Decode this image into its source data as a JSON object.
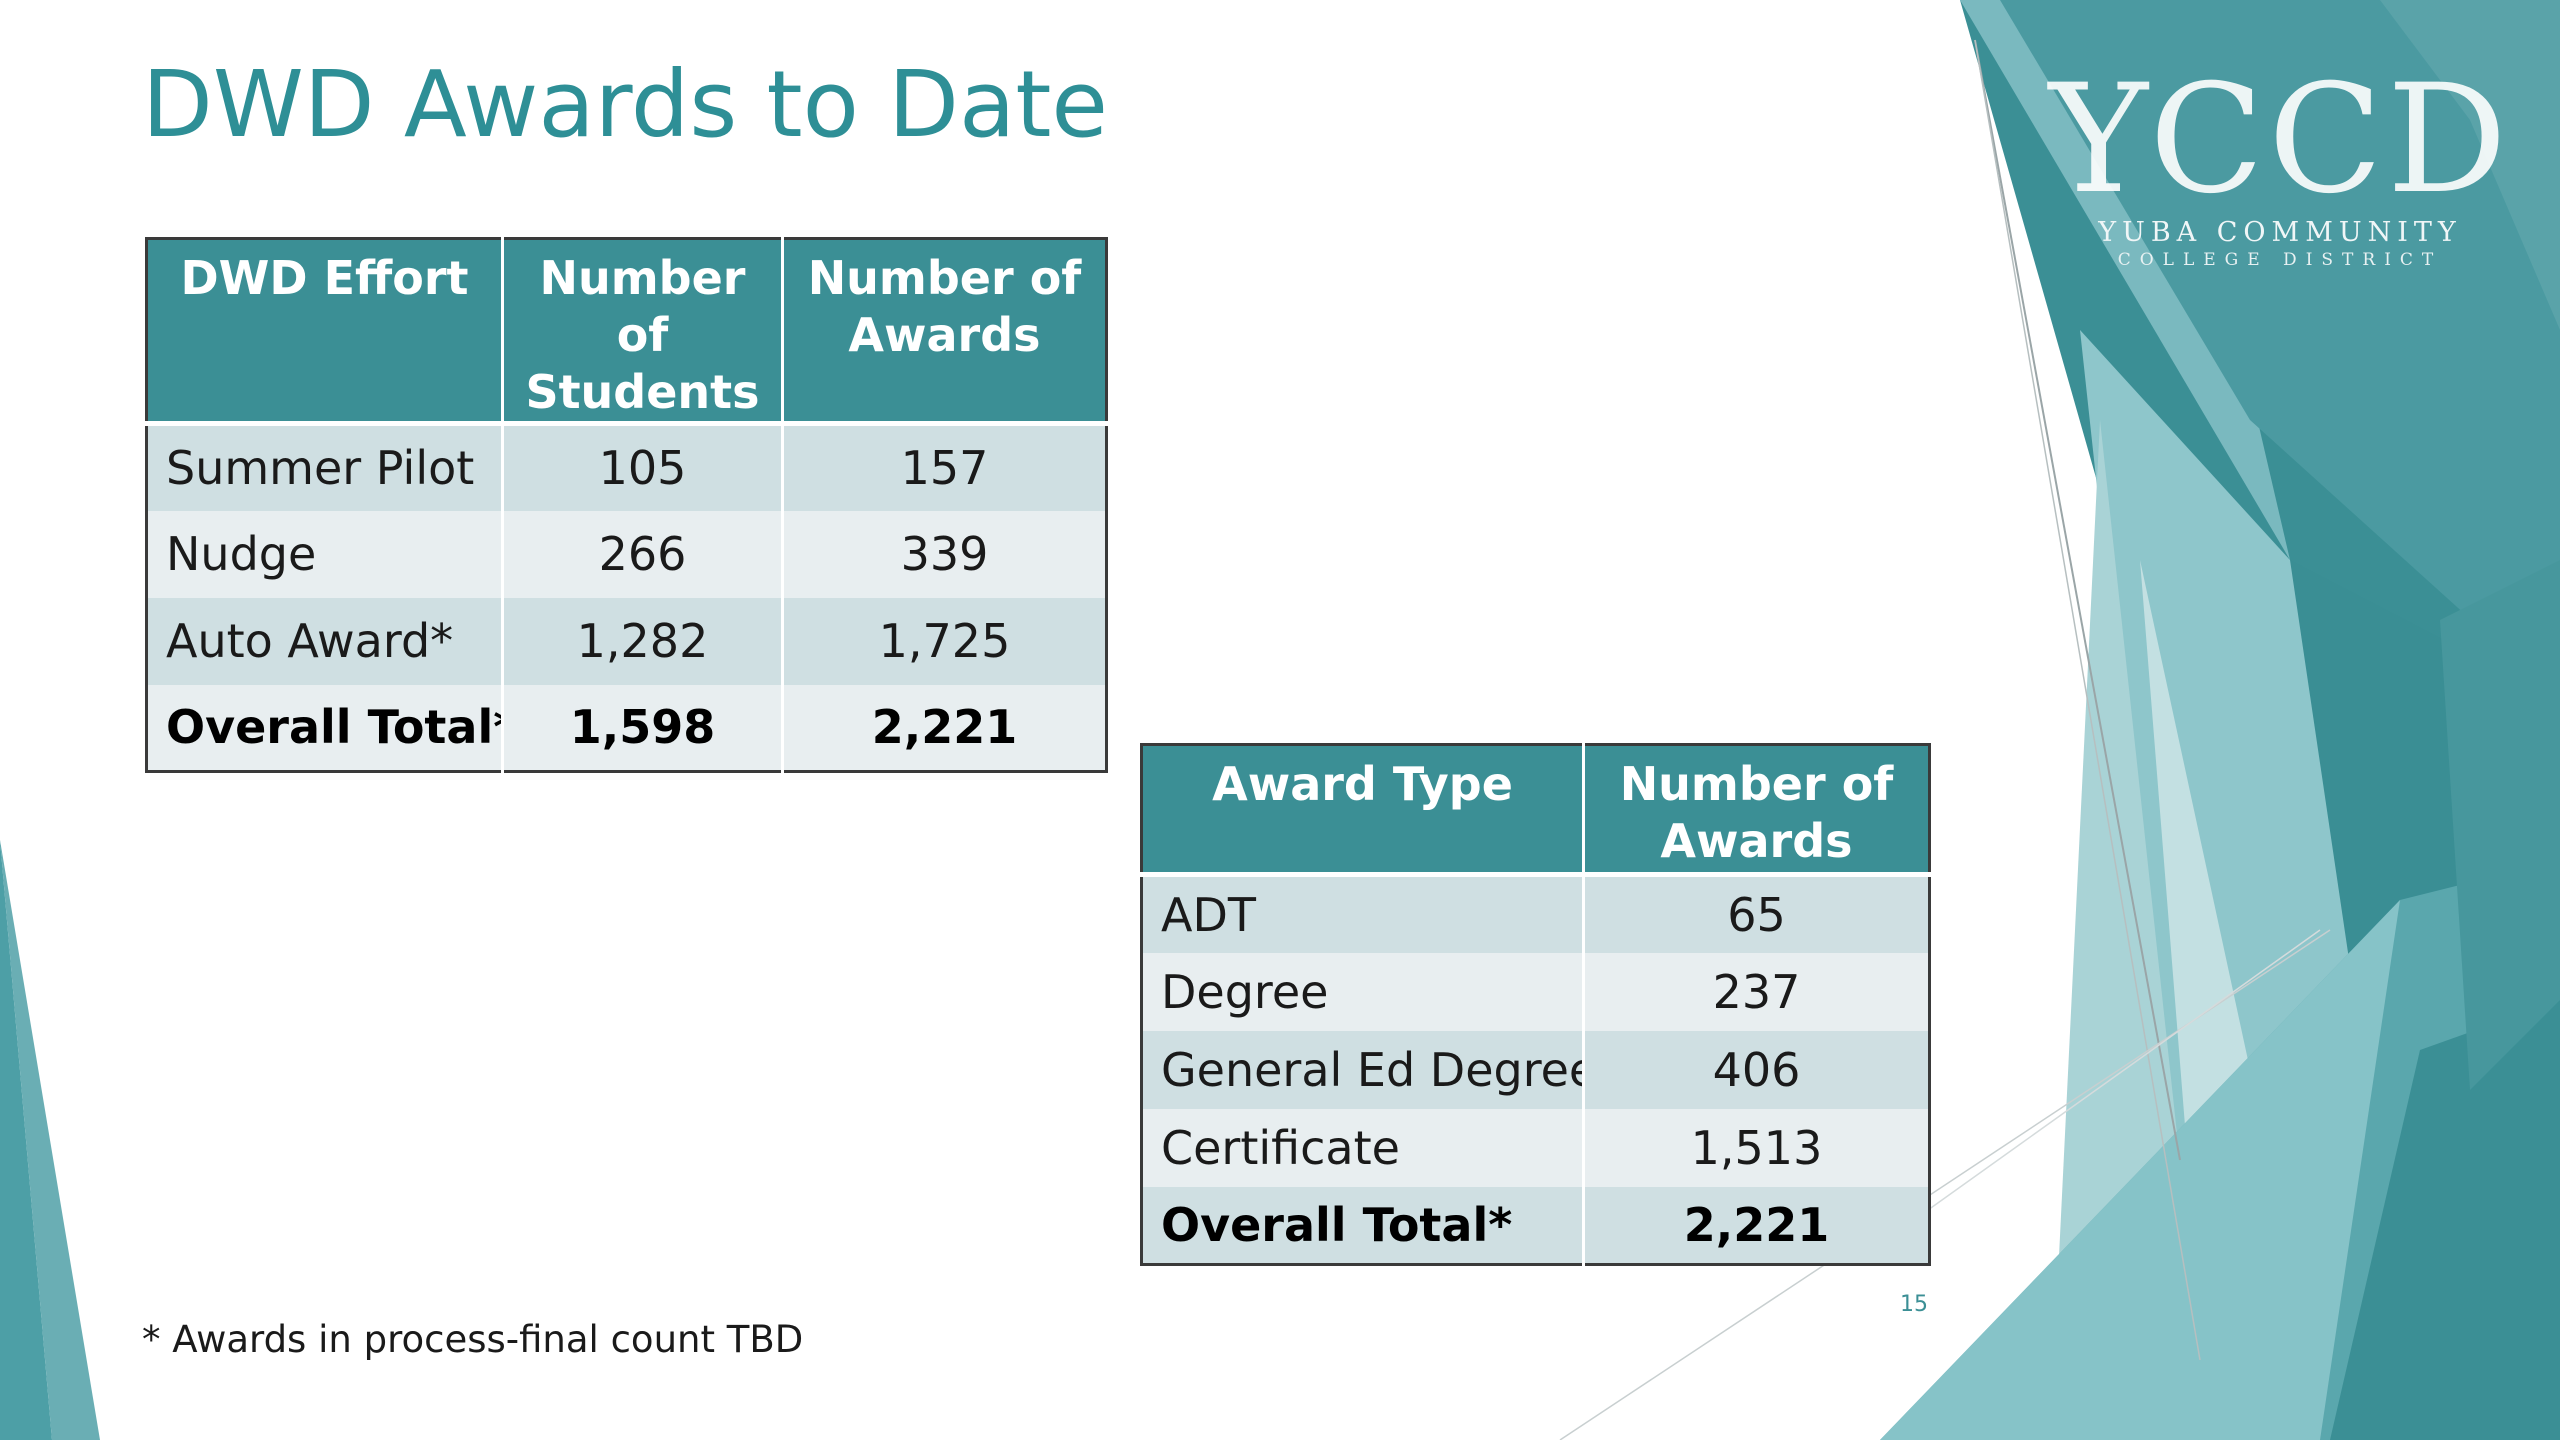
{
  "slide": {
    "title": "DWD Awards to Date",
    "footnote": "* Awards in process-final count TBD",
    "slide_number": "15"
  },
  "logo": {
    "name": "YCCD",
    "subtitle": "YUBA COMMUNITY",
    "subtitle2": "COLLEGE DISTRICT"
  },
  "effort_table": {
    "headers": [
      "DWD Effort",
      "Number of Students",
      "Number of Awards"
    ],
    "rows": [
      [
        "Summer Pilot",
        "105",
        "157"
      ],
      [
        "Nudge",
        "266",
        "339"
      ],
      [
        "Auto Award*",
        "1,282",
        "1,725"
      ],
      [
        "Overall Total*",
        "1,598",
        "2,221"
      ]
    ]
  },
  "award_table": {
    "headers": [
      "Award Type",
      "Number of Awards"
    ],
    "rows": [
      [
        "ADT",
        "65"
      ],
      [
        "Degree",
        "237"
      ],
      [
        "General Ed Degree",
        "406"
      ],
      [
        "Certificate",
        "1,513"
      ],
      [
        "Overall Total*",
        "2,221"
      ]
    ]
  },
  "colors": {
    "accent": "#2e8f96",
    "header_bg": "#3b8f95",
    "row_dark": "#cfdfe2",
    "row_light": "#e8eef0"
  }
}
